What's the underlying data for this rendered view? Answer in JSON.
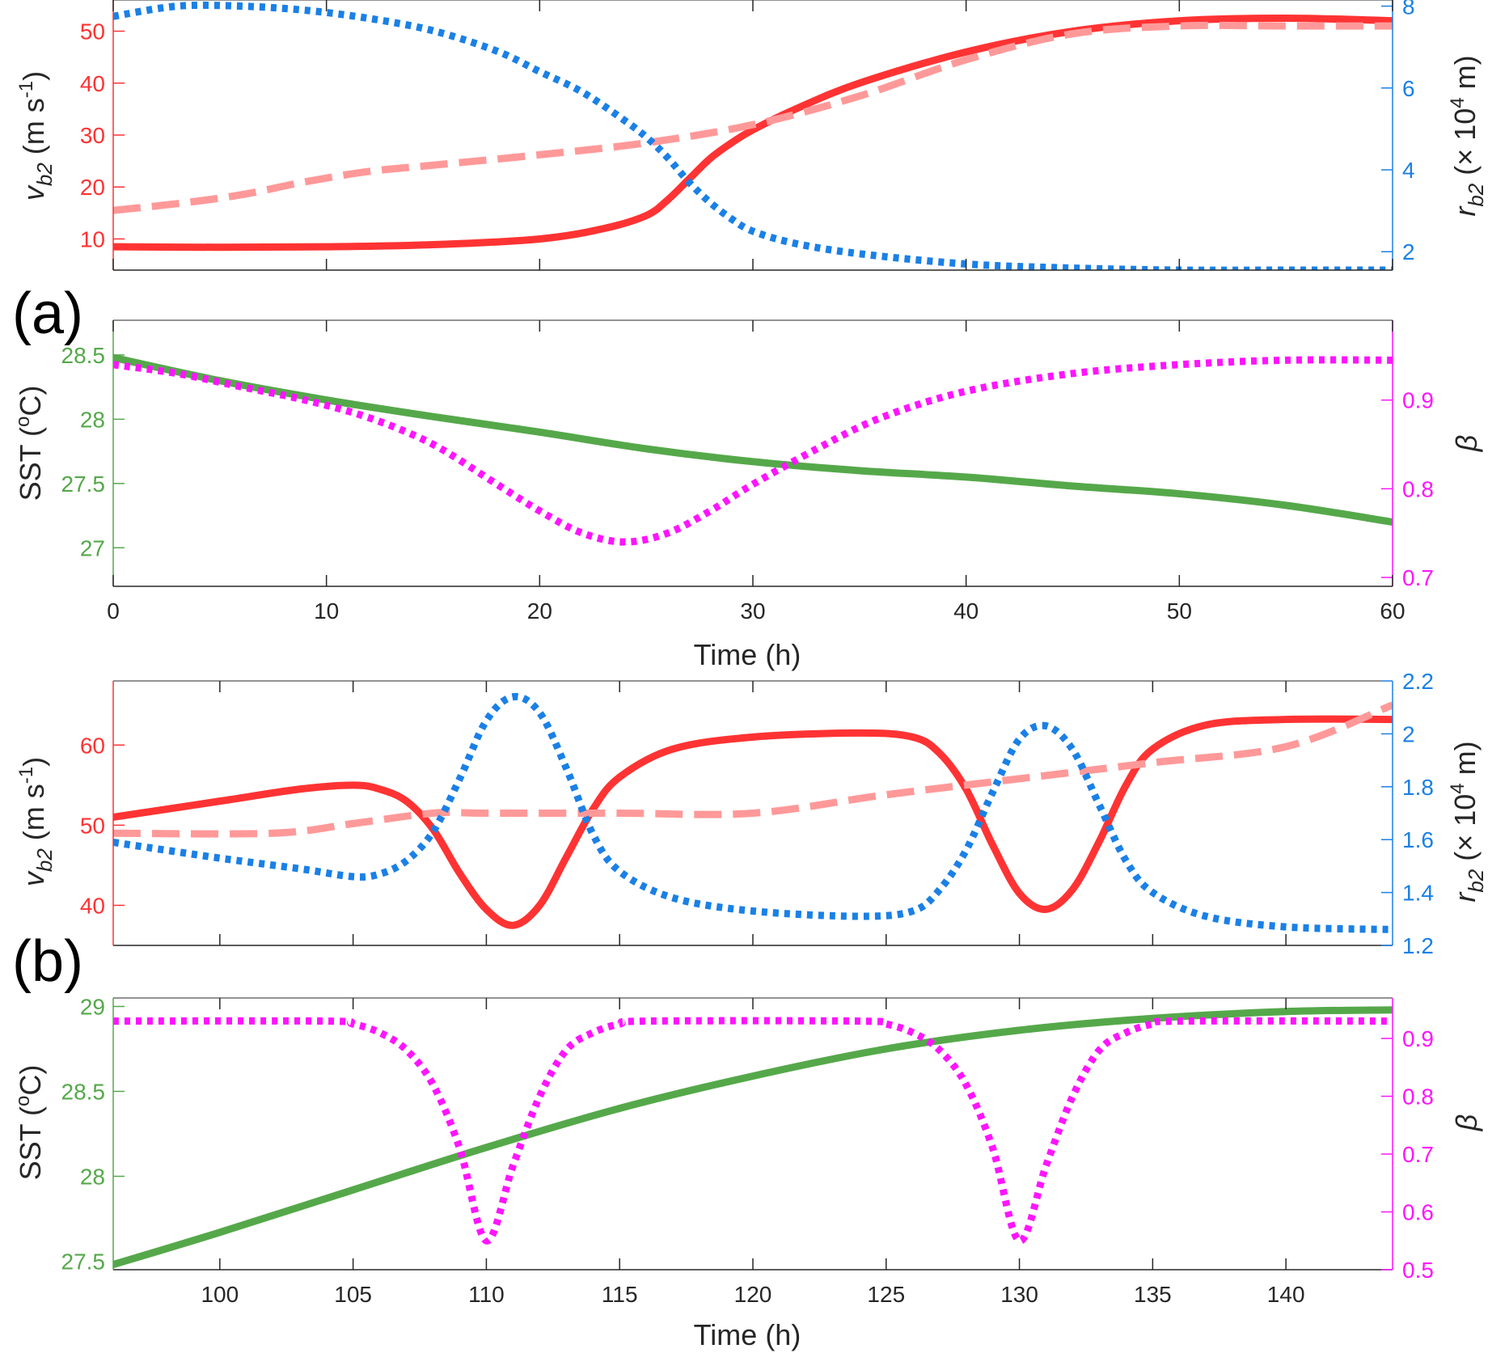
{
  "panel_labels": [
    "(a)",
    "(b)"
  ],
  "colors": {
    "v_b2": "#ff3333",
    "v_ref": "#ff9999",
    "r_b2": "#1a80e6",
    "sst": "#55a84a",
    "beta": "#ff14ff",
    "axis": "#262626"
  },
  "chart_data": [
    {
      "id": "a-top",
      "type": "line",
      "panel": "(a)",
      "xlim": [
        0,
        60
      ],
      "show_xticks": false,
      "xlabel": "",
      "left_axis": {
        "ylim": [
          4,
          56
        ],
        "ticks": [
          10,
          20,
          30,
          40,
          50
        ],
        "ylabel": "v_b2 (m s^-1)",
        "color": "#ff3333"
      },
      "right_axis": {
        "ylim": [
          1.55,
          8.15
        ],
        "ticks": [
          2,
          4,
          6,
          8
        ],
        "ylabel": "r_b2 (× 10^4 m)",
        "color": "#1a80e6"
      },
      "series": [
        {
          "name": "v_b2",
          "axis": "left",
          "style": "solid",
          "x": [
            0,
            5,
            10,
            15,
            20,
            23,
            25,
            26,
            27,
            28,
            29,
            30,
            32,
            35,
            40,
            45,
            50,
            55,
            60
          ],
          "y": [
            8.5,
            8.4,
            8.5,
            8.9,
            10.0,
            12.0,
            14.5,
            17.5,
            21.5,
            25.5,
            28.5,
            31.0,
            35.0,
            40.0,
            46.0,
            50.0,
            52.0,
            52.5,
            52.0
          ]
        },
        {
          "name": "v_b2 reference",
          "axis": "left",
          "style": "dashed",
          "x": [
            0,
            3,
            6,
            9,
            12,
            15,
            20,
            25,
            30,
            35,
            40,
            45,
            50,
            55,
            60
          ],
          "y": [
            15.5,
            16.8,
            18.5,
            21.0,
            23.0,
            24.2,
            26.2,
            28.5,
            32.0,
            37.5,
            44.5,
            49.5,
            51.0,
            51.0,
            51.0
          ]
        },
        {
          "name": "r_b2",
          "axis": "right",
          "style": "dotted",
          "x": [
            0,
            3,
            6,
            9,
            12,
            15,
            18,
            20,
            22,
            24,
            25,
            26,
            27,
            28,
            29,
            30,
            32,
            35,
            40,
            45,
            50,
            55,
            60
          ],
          "y": [
            7.75,
            8.0,
            8.0,
            7.9,
            7.7,
            7.4,
            6.9,
            6.4,
            5.9,
            5.2,
            4.8,
            4.3,
            3.7,
            3.2,
            2.8,
            2.5,
            2.2,
            1.95,
            1.7,
            1.6,
            1.55,
            1.55,
            1.55
          ]
        }
      ]
    },
    {
      "id": "a-bottom",
      "type": "line",
      "panel": "(a)",
      "xlim": [
        0,
        60
      ],
      "show_xticks": true,
      "xlabel": "Time (h)",
      "xticks": [
        0,
        10,
        20,
        30,
        40,
        50,
        60
      ],
      "left_axis": {
        "ylim": [
          26.7,
          28.77
        ],
        "ticks": [
          27,
          27.5,
          28,
          28.5
        ],
        "ylabel": "SST (°C)",
        "color": "#55a84a"
      },
      "right_axis": {
        "ylim": [
          0.69,
          0.99
        ],
        "ticks": [
          0.7,
          0.8,
          0.9
        ],
        "ylabel": "β",
        "color": "#ff14ff"
      },
      "series": [
        {
          "name": "SST",
          "axis": "left",
          "style": "solid",
          "x": [
            0,
            5,
            10,
            15,
            20,
            25,
            30,
            35,
            40,
            45,
            50,
            55,
            60
          ],
          "y": [
            28.48,
            28.3,
            28.15,
            28.02,
            27.9,
            27.77,
            27.67,
            27.6,
            27.55,
            27.48,
            27.42,
            27.33,
            27.2
          ]
        },
        {
          "name": "β",
          "axis": "right",
          "style": "dotted",
          "x": [
            0,
            3,
            6,
            9,
            12,
            15,
            18,
            20,
            22,
            24,
            26,
            28,
            30,
            33,
            36,
            40,
            45,
            50,
            55,
            60
          ],
          "y": [
            0.94,
            0.93,
            0.915,
            0.9,
            0.88,
            0.85,
            0.805,
            0.775,
            0.75,
            0.74,
            0.75,
            0.775,
            0.805,
            0.845,
            0.88,
            0.91,
            0.93,
            0.94,
            0.945,
            0.945
          ]
        }
      ]
    },
    {
      "id": "b-top",
      "type": "line",
      "panel": "(b)",
      "xlim": [
        96,
        144
      ],
      "show_xticks": false,
      "xlabel": "",
      "left_axis": {
        "ylim": [
          35,
          68
        ],
        "ticks": [
          40,
          50,
          60
        ],
        "ylabel": "v_b2 (m s^-1)",
        "color": "#ff3333"
      },
      "right_axis": {
        "ylim": [
          1.2,
          2.2
        ],
        "ticks": [
          1.2,
          1.4,
          1.6,
          1.8,
          2,
          2.2
        ],
        "ylabel": "r_b2 (× 10^4 m)",
        "color": "#1a80e6"
      },
      "series": [
        {
          "name": "v_b2",
          "axis": "left",
          "style": "solid",
          "x": [
            96,
            100,
            103,
            105,
            106,
            107,
            108,
            109,
            110,
            111,
            112,
            113,
            114,
            115,
            117,
            120,
            124,
            126,
            127,
            128,
            129,
            130,
            131,
            132,
            133,
            134,
            135,
            137,
            140,
            144
          ],
          "y": [
            51,
            53,
            54.5,
            55,
            54.5,
            53,
            49.5,
            44,
            39.5,
            37.5,
            40,
            46,
            52,
            56,
            59.5,
            61,
            61.5,
            61,
            59,
            54.5,
            47.5,
            41.5,
            39.5,
            42,
            48,
            55,
            59.5,
            62.5,
            63.2,
            63.2
          ]
        },
        {
          "name": "v_b2 reference",
          "axis": "left",
          "style": "dashed",
          "x": [
            96,
            102,
            105,
            108,
            110,
            115,
            120,
            125,
            130,
            135,
            140,
            144
          ],
          "y": [
            49,
            49,
            50.2,
            51.5,
            51.5,
            51.5,
            51.5,
            53.8,
            55.8,
            57.8,
            59.8,
            65
          ]
        },
        {
          "name": "r_b2",
          "axis": "right",
          "style": "dotted",
          "x": [
            96,
            100,
            103,
            105,
            106,
            107,
            108,
            109,
            110,
            111,
            112,
            113,
            114,
            115,
            117,
            120,
            124,
            126,
            127,
            128,
            129,
            130,
            131,
            132,
            133,
            134,
            135,
            137,
            140,
            144
          ],
          "y": [
            1.59,
            1.53,
            1.49,
            1.46,
            1.47,
            1.52,
            1.63,
            1.83,
            2.05,
            2.14,
            2.08,
            1.87,
            1.62,
            1.48,
            1.38,
            1.33,
            1.31,
            1.33,
            1.41,
            1.56,
            1.78,
            1.98,
            2.03,
            1.94,
            1.73,
            1.52,
            1.4,
            1.31,
            1.27,
            1.26
          ]
        }
      ]
    },
    {
      "id": "b-bottom",
      "type": "line",
      "panel": "(b)",
      "xlim": [
        96,
        144
      ],
      "show_xticks": true,
      "xlabel": "Time (h)",
      "xticks": [
        100,
        105,
        110,
        115,
        120,
        125,
        130,
        135,
        140
      ],
      "left_axis": {
        "ylim": [
          27.45,
          29.05
        ],
        "ticks": [
          27.5,
          28,
          28.5,
          29
        ],
        "ylabel": "SST (°C)",
        "color": "#55a84a"
      },
      "right_axis": {
        "ylim": [
          0.5,
          0.97
        ],
        "ticks": [
          0.5,
          0.6,
          0.7,
          0.8,
          0.9
        ],
        "ylabel": "β",
        "color": "#ff14ff"
      },
      "series": [
        {
          "name": "SST",
          "axis": "left",
          "style": "solid",
          "x": [
            96,
            100,
            105,
            110,
            115,
            120,
            125,
            130,
            135,
            140,
            144
          ],
          "y": [
            27.48,
            27.67,
            27.92,
            28.17,
            28.4,
            28.59,
            28.75,
            28.86,
            28.93,
            28.97,
            28.98
          ]
        },
        {
          "name": "β",
          "axis": "right",
          "style": "dotted",
          "x": [
            96,
            104,
            105,
            106,
            107,
            108,
            109,
            110,
            111,
            112,
            113,
            114,
            115,
            116,
            124,
            125,
            126,
            127,
            128,
            129,
            130,
            131,
            132,
            133,
            134,
            135,
            136,
            144
          ],
          "y": [
            0.93,
            0.93,
            0.925,
            0.91,
            0.88,
            0.82,
            0.71,
            0.55,
            0.68,
            0.8,
            0.88,
            0.91,
            0.925,
            0.93,
            0.93,
            0.925,
            0.91,
            0.88,
            0.82,
            0.71,
            0.55,
            0.68,
            0.8,
            0.88,
            0.91,
            0.925,
            0.93,
            0.93
          ]
        }
      ]
    }
  ]
}
